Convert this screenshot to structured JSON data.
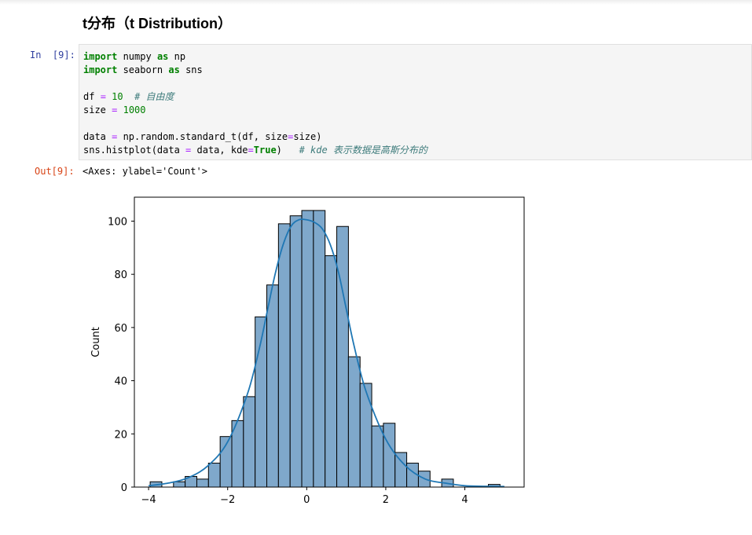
{
  "heading": "t分布（t Distribution）",
  "cell": {
    "in_prompt": "In  [9]:",
    "out_prompt": "Out[9]:",
    "output_text": "<Axes: ylabel='Count'>",
    "code_lines": [
      [
        {
          "t": "import",
          "c": "kw"
        },
        {
          "t": " numpy "
        },
        {
          "t": "as",
          "c": "kw"
        },
        {
          "t": " np"
        }
      ],
      [
        {
          "t": "import",
          "c": "kw"
        },
        {
          "t": " seaborn "
        },
        {
          "t": "as",
          "c": "kw"
        },
        {
          "t": " sns"
        }
      ],
      [],
      [
        {
          "t": "df "
        },
        {
          "t": "=",
          "c": "op"
        },
        {
          "t": " "
        },
        {
          "t": "10",
          "c": "num"
        },
        {
          "t": "  "
        },
        {
          "t": "# 自由度",
          "c": "cm"
        }
      ],
      [
        {
          "t": "size "
        },
        {
          "t": "=",
          "c": "op"
        },
        {
          "t": " "
        },
        {
          "t": "1000",
          "c": "num"
        }
      ],
      [],
      [
        {
          "t": "data "
        },
        {
          "t": "=",
          "c": "op"
        },
        {
          "t": " np.random.standard_t(df, size"
        },
        {
          "t": "=",
          "c": "op"
        },
        {
          "t": "size)"
        }
      ],
      [
        {
          "t": "sns.histplot(data "
        },
        {
          "t": "=",
          "c": "op"
        },
        {
          "t": " data, kde"
        },
        {
          "t": "=",
          "c": "op"
        },
        {
          "t": "True",
          "c": "kw"
        },
        {
          "t": ")   "
        },
        {
          "t": "# kde 表示数据是高斯分布的",
          "c": "cm"
        }
      ]
    ]
  },
  "colors": {
    "bar_fill": "#7fa8cb",
    "bar_edge": "#000000",
    "kde_line": "#1f77b4",
    "code_keyword": "#008000",
    "code_operator": "#aa22ff",
    "code_comment": "#3d7b7b",
    "in_prompt": "#303f9f",
    "out_prompt": "#d84315"
  },
  "chart_data": {
    "type": "bar",
    "subtype": "histogram with kde line",
    "title": "",
    "xlabel": "",
    "ylabel": "Count",
    "xlim": [
      -4.36,
      5.5
    ],
    "ylim": [
      0,
      109
    ],
    "xticks": [
      -4,
      -2,
      0,
      2,
      4
    ],
    "xtick_labels": [
      "−4",
      "−2",
      "0",
      "2",
      "4"
    ],
    "yticks": [
      0,
      20,
      40,
      60,
      80,
      100
    ],
    "bin_width": 0.295,
    "bins": [
      {
        "x0": -3.96,
        "count": 2
      },
      {
        "x0": -3.665,
        "count": 0
      },
      {
        "x0": -3.37,
        "count": 2
      },
      {
        "x0": -3.075,
        "count": 4
      },
      {
        "x0": -2.78,
        "count": 3
      },
      {
        "x0": -2.485,
        "count": 9
      },
      {
        "x0": -2.19,
        "count": 19
      },
      {
        "x0": -1.895,
        "count": 25
      },
      {
        "x0": -1.6,
        "count": 34
      },
      {
        "x0": -1.305,
        "count": 64
      },
      {
        "x0": -1.01,
        "count": 76
      },
      {
        "x0": -0.715,
        "count": 99
      },
      {
        "x0": -0.42,
        "count": 102
      },
      {
        "x0": -0.125,
        "count": 104
      },
      {
        "x0": 0.17,
        "count": 104
      },
      {
        "x0": 0.465,
        "count": 87
      },
      {
        "x0": 0.76,
        "count": 98
      },
      {
        "x0": 1.055,
        "count": 49
      },
      {
        "x0": 1.35,
        "count": 39
      },
      {
        "x0": 1.645,
        "count": 23
      },
      {
        "x0": 1.94,
        "count": 24
      },
      {
        "x0": 2.235,
        "count": 13
      },
      {
        "x0": 2.53,
        "count": 9
      },
      {
        "x0": 2.825,
        "count": 6
      },
      {
        "x0": 3.12,
        "count": 0
      },
      {
        "x0": 3.415,
        "count": 3
      },
      {
        "x0": 3.71,
        "count": 0
      },
      {
        "x0": 4.005,
        "count": 0
      },
      {
        "x0": 4.3,
        "count": 0
      },
      {
        "x0": 4.595,
        "count": 1
      }
    ],
    "kde": {
      "x": [
        -4.0,
        -3.5,
        -3.0,
        -2.5,
        -2.0,
        -1.5,
        -1.2,
        -1.0,
        -0.8,
        -0.6,
        -0.4,
        -0.2,
        0.0,
        0.2,
        0.4,
        0.6,
        0.8,
        1.0,
        1.2,
        1.5,
        2.0,
        2.5,
        3.0,
        3.5,
        4.0,
        4.5,
        5.0
      ],
      "y": [
        0.5,
        1.5,
        3.5,
        8,
        17,
        35,
        52,
        66,
        80,
        91,
        98,
        100.5,
        100.5,
        99.5,
        97,
        91,
        81,
        67,
        53,
        36,
        18,
        8,
        3,
        1.5,
        0.5,
        0.3,
        0.2
      ]
    }
  }
}
